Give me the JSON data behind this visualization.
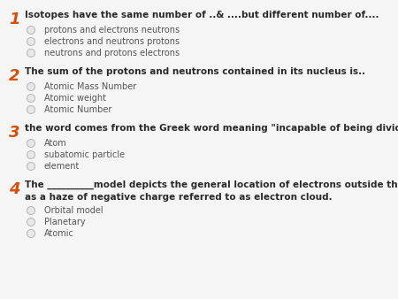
{
  "background_color": "#f5f5f5",
  "number_color": "#d4500a",
  "question_color": "#2a2a2a",
  "option_color": "#555555",
  "circle_edge_color": "#bbbbbb",
  "circle_fill_color": "#e8e8e8",
  "questions": [
    {
      "num": "1",
      "text": "Isotopes have the same number of ..& ....but different number of....",
      "text2": "",
      "options": [
        "protons and electrons neutrons",
        "electrons and neutrons protons",
        "neutrons and protons electrons"
      ]
    },
    {
      "num": "2",
      "text": "The sum of the protons and neutrons contained in its nucleus is..",
      "text2": "",
      "options": [
        "Atomic Mass Number",
        "Atomic weight",
        "Atomic Number"
      ]
    },
    {
      "num": "3",
      "text": "the word comes from the Greek word meaning \"incapable of being divided\"",
      "text2": "",
      "options": [
        "Atom",
        "subatomic particle",
        "element"
      ]
    },
    {
      "num": "4",
      "text": "The __________model depicts the general location of electrons outside the nucleus",
      "text2": "as a haze of negative charge referred to as electron cloud.",
      "options": [
        "Orbital model",
        "Planetary",
        "Atomic"
      ]
    }
  ],
  "q_fontsize": 7.5,
  "opt_fontsize": 7.0,
  "num_fontsize": 13
}
